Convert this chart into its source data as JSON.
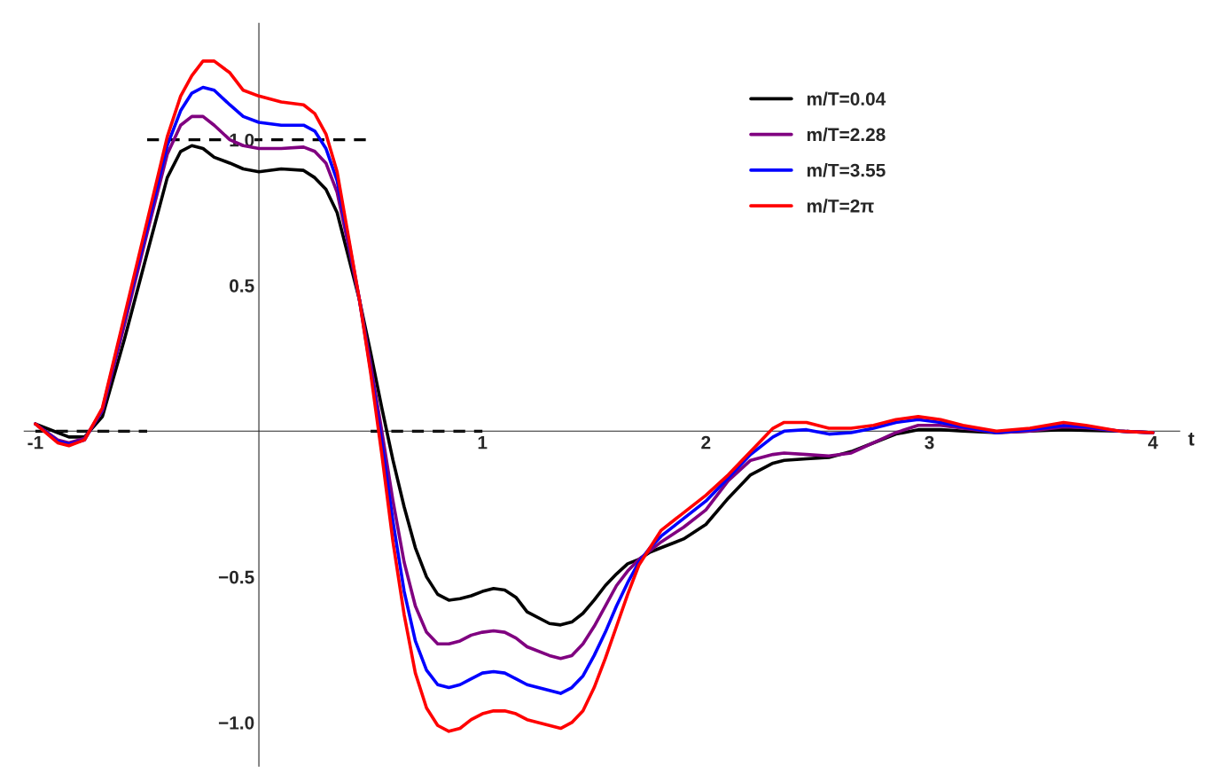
{
  "chart_data": {
    "type": "line",
    "xlabel": "t",
    "x": [
      -1,
      -0.9,
      -0.85,
      -0.78,
      -0.7,
      -0.6,
      -0.5,
      -0.41,
      -0.35,
      -0.3,
      -0.25,
      -0.2,
      -0.13,
      -0.07,
      0,
      0.1,
      0.2,
      0.25,
      0.3,
      0.35,
      0.4,
      0.45,
      0.5,
      0.55,
      0.6,
      0.65,
      0.7,
      0.75,
      0.8,
      0.85,
      0.9,
      0.95,
      1.0,
      1.05,
      1.1,
      1.15,
      1.2,
      1.3,
      1.35,
      1.4,
      1.45,
      1.5,
      1.55,
      1.6,
      1.65,
      1.7,
      1.75,
      1.8,
      1.9,
      2.0,
      2.1,
      2.2,
      2.3,
      2.35,
      2.45,
      2.55,
      2.65,
      2.75,
      2.85,
      2.95,
      3.05,
      3.15,
      3.3,
      3.45,
      3.6,
      3.7,
      3.85,
      4.0
    ],
    "series": [
      {
        "name": "m/T=0.04",
        "color": "#000000",
        "values": [
          0.025,
          -0.005,
          -0.02,
          -0.02,
          0.05,
          0.32,
          0.61,
          0.87,
          0.96,
          0.98,
          0.97,
          0.94,
          0.92,
          0.9,
          0.89,
          0.9,
          0.895,
          0.87,
          0.83,
          0.75,
          0.6,
          0.45,
          0.27,
          0.08,
          -0.1,
          -0.26,
          -0.4,
          -0.5,
          -0.56,
          -0.58,
          -0.575,
          -0.565,
          -0.55,
          -0.54,
          -0.545,
          -0.57,
          -0.62,
          -0.66,
          -0.665,
          -0.655,
          -0.625,
          -0.58,
          -0.53,
          -0.49,
          -0.455,
          -0.44,
          -0.415,
          -0.4,
          -0.37,
          -0.32,
          -0.23,
          -0.15,
          -0.11,
          -0.1,
          -0.095,
          -0.09,
          -0.07,
          -0.04,
          -0.01,
          0.005,
          0.005,
          0.0,
          -0.005,
          0.0,
          0.005,
          0.003,
          0.0,
          -0.005
        ]
      },
      {
        "name": "m/T=2.28",
        "color": "#800080",
        "values": [
          0.025,
          -0.03,
          -0.04,
          -0.025,
          0.07,
          0.37,
          0.68,
          0.95,
          1.05,
          1.08,
          1.08,
          1.05,
          1.0,
          0.98,
          0.97,
          0.97,
          0.975,
          0.96,
          0.92,
          0.82,
          0.64,
          0.45,
          0.23,
          0.0,
          -0.24,
          -0.45,
          -0.6,
          -0.69,
          -0.73,
          -0.73,
          -0.72,
          -0.7,
          -0.69,
          -0.685,
          -0.69,
          -0.71,
          -0.74,
          -0.77,
          -0.78,
          -0.77,
          -0.73,
          -0.67,
          -0.6,
          -0.53,
          -0.48,
          -0.44,
          -0.41,
          -0.38,
          -0.33,
          -0.27,
          -0.17,
          -0.1,
          -0.08,
          -0.075,
          -0.08,
          -0.085,
          -0.075,
          -0.04,
          -0.005,
          0.02,
          0.02,
          0.01,
          -0.005,
          0.0,
          0.015,
          0.012,
          0.0,
          -0.005
        ]
      },
      {
        "name": "m/T=3.55",
        "color": "#0000ff",
        "values": [
          0.025,
          -0.035,
          -0.045,
          -0.03,
          0.075,
          0.39,
          0.7,
          0.98,
          1.1,
          1.16,
          1.18,
          1.17,
          1.12,
          1.08,
          1.06,
          1.05,
          1.05,
          1.03,
          0.97,
          0.86,
          0.66,
          0.45,
          0.21,
          -0.04,
          -0.31,
          -0.55,
          -0.72,
          -0.82,
          -0.87,
          -0.88,
          -0.87,
          -0.85,
          -0.83,
          -0.825,
          -0.83,
          -0.85,
          -0.87,
          -0.89,
          -0.9,
          -0.88,
          -0.84,
          -0.77,
          -0.69,
          -0.6,
          -0.52,
          -0.45,
          -0.4,
          -0.36,
          -0.3,
          -0.24,
          -0.16,
          -0.08,
          -0.02,
          0.0,
          0.005,
          -0.01,
          -0.005,
          0.01,
          0.03,
          0.04,
          0.03,
          0.015,
          -0.005,
          0.005,
          0.02,
          0.015,
          0.0,
          -0.005
        ]
      },
      {
        "name": "m/T=2π",
        "color": "#ff0000",
        "values": [
          0.025,
          -0.04,
          -0.05,
          -0.03,
          0.08,
          0.4,
          0.72,
          1.01,
          1.15,
          1.22,
          1.27,
          1.27,
          1.23,
          1.17,
          1.15,
          1.13,
          1.12,
          1.09,
          1.02,
          0.89,
          0.67,
          0.45,
          0.2,
          -0.08,
          -0.38,
          -0.63,
          -0.83,
          -0.95,
          -1.01,
          -1.03,
          -1.02,
          -0.99,
          -0.97,
          -0.96,
          -0.96,
          -0.97,
          -0.99,
          -1.01,
          -1.02,
          -1.0,
          -0.96,
          -0.88,
          -0.78,
          -0.67,
          -0.56,
          -0.46,
          -0.4,
          -0.34,
          -0.28,
          -0.22,
          -0.15,
          -0.07,
          0.01,
          0.03,
          0.03,
          0.01,
          0.01,
          0.02,
          0.04,
          0.05,
          0.04,
          0.02,
          0.0,
          0.01,
          0.03,
          0.02,
          0.0,
          -0.005
        ]
      },
      {
        "color": "#000000",
        "line_style": "dashed",
        "x": [
          -1,
          -0.5
        ],
        "values": [
          0,
          0
        ]
      },
      {
        "color": "#000000",
        "line_style": "dashed",
        "x": [
          -0.5,
          0.5
        ],
        "values": [
          1,
          1
        ]
      },
      {
        "color": "#000000",
        "line_style": "dashed",
        "x": [
          0.5,
          1
        ],
        "values": [
          0,
          0
        ]
      }
    ],
    "xlim": [
      -1.05,
      4.12
    ],
    "ylim": [
      -1.15,
      1.4
    ],
    "xticks": [
      -1,
      1,
      2,
      3,
      4
    ],
    "yticks": [
      {
        "value": -1.0,
        "label": "−1.0"
      },
      {
        "value": -0.5,
        "label": "−0.5"
      },
      {
        "value": 0.5,
        "label": "0.5"
      },
      {
        "value": 1.0,
        "label": "1.0"
      }
    ],
    "legend": "top right",
    "grid": false
  }
}
